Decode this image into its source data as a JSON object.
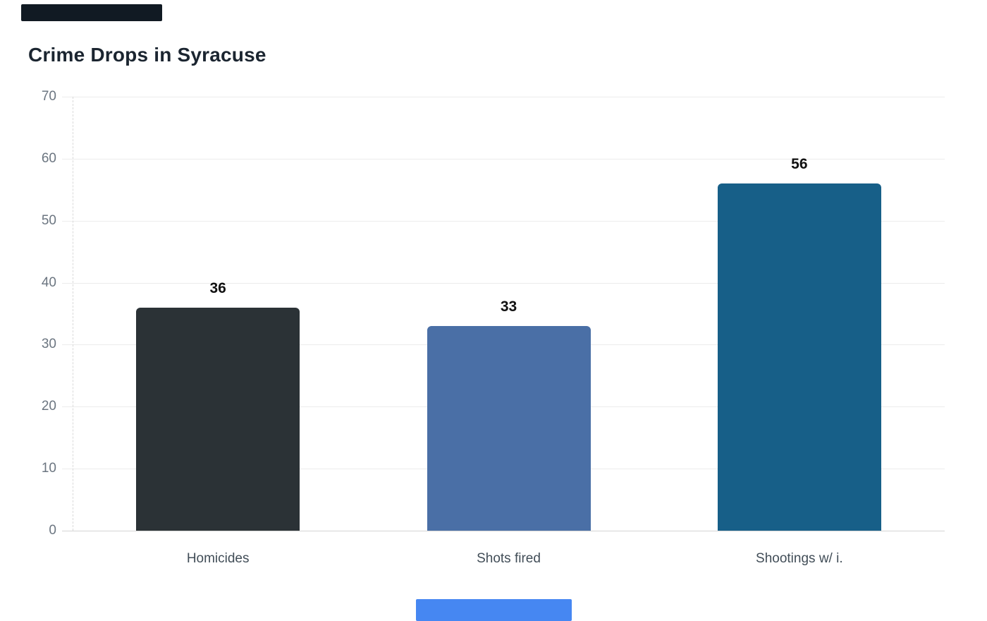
{
  "title": {
    "text": "Crime Drops in Syracuse"
  },
  "blocks": {
    "top_left": {
      "color": "#111a23"
    },
    "bottom_center": {
      "color": "#4687f2"
    }
  },
  "chart_data": {
    "type": "bar",
    "title": "Crime Drops in Syracuse",
    "categories": [
      "Homicides",
      "Shots fired",
      "Shootings w/ i."
    ],
    "values": [
      36,
      33,
      56
    ],
    "data_labels": [
      "36",
      "33",
      "56"
    ],
    "bar_colors": [
      "#2b3236",
      "#4a6fa6",
      "#175f88"
    ],
    "xlabel": "",
    "ylabel": "",
    "ylim": [
      0,
      70
    ],
    "yticks": [
      0,
      10,
      20,
      30,
      40,
      50,
      60,
      70
    ],
    "grid": "horizontal",
    "legend": "none",
    "colors": {
      "title": "#1b2530",
      "grid": "#ececec",
      "baseline": "#d5d5d5",
      "axis_border": "#d9d9d9",
      "y_label": "#6b7580",
      "x_label": "#414d57",
      "value_label": "#111111",
      "background": "#ffffff"
    }
  }
}
